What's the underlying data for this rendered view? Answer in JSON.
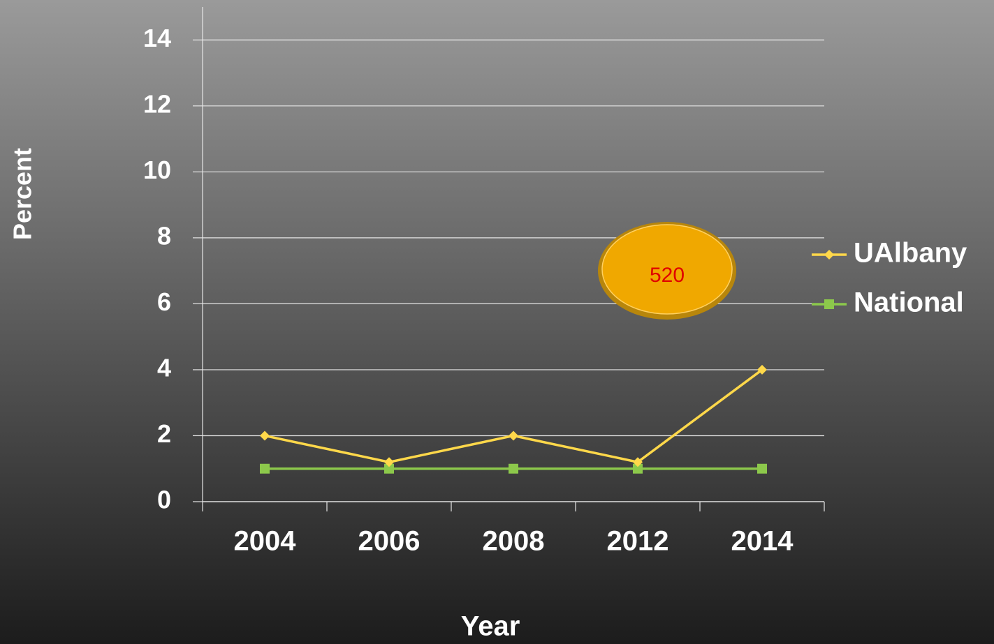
{
  "chart_data": {
    "type": "line",
    "x_label": "Year",
    "y_label": "Percent",
    "categories": [
      "2004",
      "2006",
      "2008",
      "2012",
      "2014"
    ],
    "series": [
      {
        "name": "UAlbany",
        "color": "#ffd84a",
        "marker": "diamond",
        "values": [
          2,
          1.2,
          2,
          1.2,
          4
        ]
      },
      {
        "name": "National",
        "color": "#8cc84b",
        "marker": "square",
        "values": [
          1,
          1,
          1,
          1,
          1
        ]
      }
    ],
    "ylim": [
      0,
      15
    ],
    "yticks": [
      0,
      2,
      4,
      6,
      8,
      10,
      12,
      14
    ],
    "grid": true,
    "legend": "right",
    "annotations": [
      {
        "text": "520"
      }
    ]
  }
}
